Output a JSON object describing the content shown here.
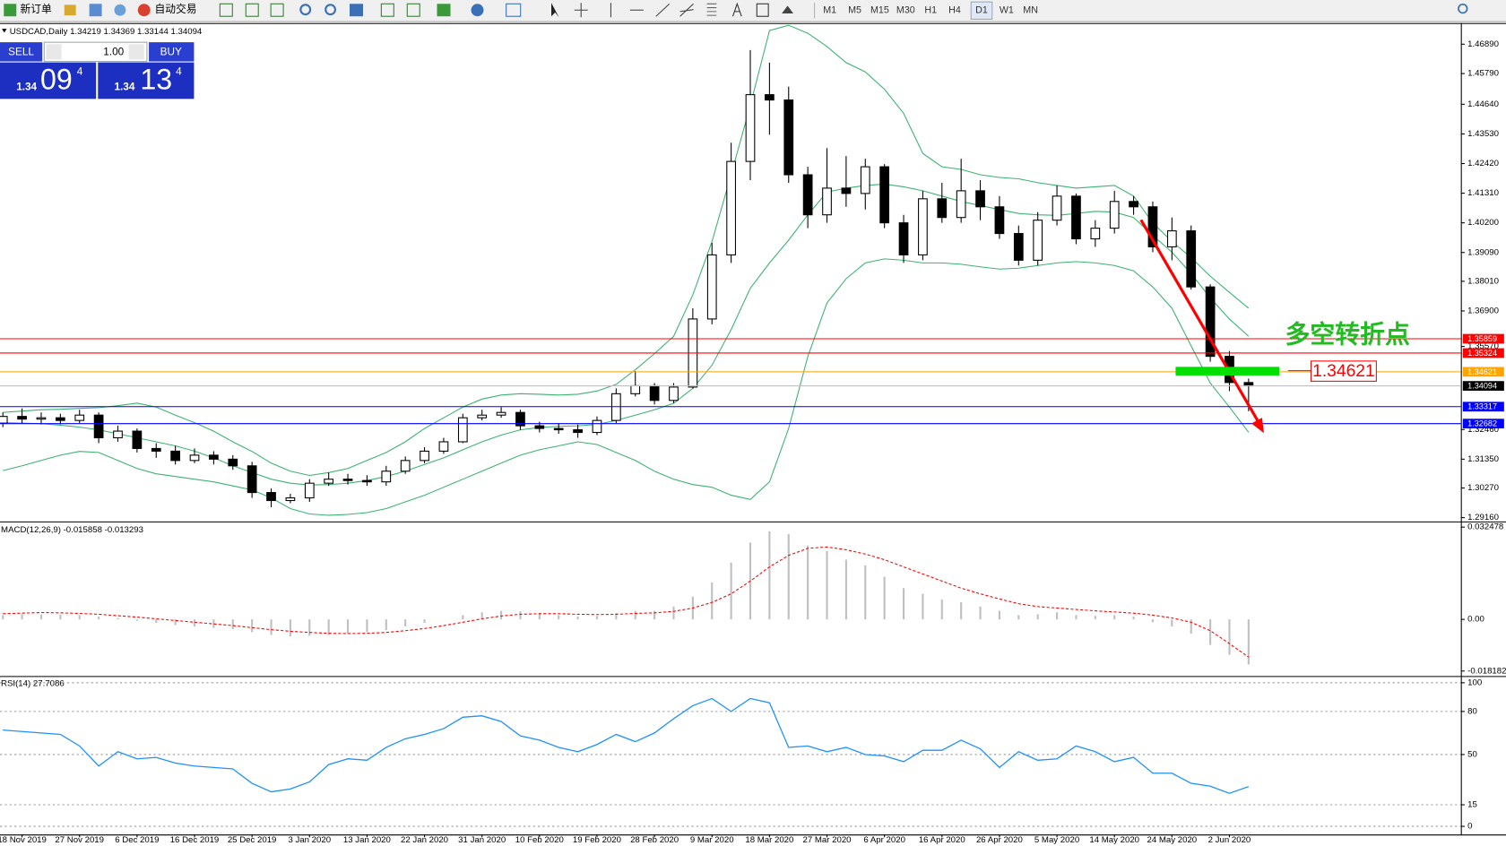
{
  "toolbar": {
    "buttons": [
      "新订单",
      "自动交易"
    ],
    "periods": [
      "M1",
      "M5",
      "M15",
      "M30",
      "H1",
      "H4",
      "D1",
      "W1",
      "MN"
    ]
  },
  "trade_panel": {
    "sell": "SELL",
    "buy": "BUY",
    "lots": "1.00",
    "sell_price": {
      "big": "1.34",
      "pips": "09",
      "point": "4"
    },
    "buy_price": {
      "big": "1.34",
      "pips": "13",
      "point": "4"
    }
  },
  "chart_data": [
    {
      "type": "candlestick",
      "title": "USDCAD,Daily  1.34219 1.34369 1.33144 1.34094",
      "categories": [
        null,
        "18 Nov 2019",
        null,
        null,
        "27 Nov 2019",
        null,
        null,
        "6 Dec 2019",
        null,
        null,
        "16 Dec 2019",
        null,
        null,
        "25 Dec 2019",
        null,
        null,
        "3 Jan 2020",
        null,
        null,
        "13 Jan 2020",
        null,
        null,
        "22 Jan 2020",
        null,
        null,
        "31 Jan 2020",
        null,
        null,
        "10 Feb 2020",
        null,
        null,
        "19 Feb 2020",
        null,
        null,
        "28 Feb 2020",
        null,
        null,
        "9 Mar 2020",
        null,
        null,
        "18 Mar 2020",
        null,
        null,
        "27 Mar 2020",
        null,
        null,
        "6 Apr 2020",
        null,
        null,
        "16 Apr 2020",
        null,
        null,
        "26 Apr 2020",
        null,
        null,
        "5 May 2020",
        null,
        null,
        "14 May 2020",
        null,
        null,
        "24 May 2020",
        null,
        null,
        "2 Jun 2020",
        null
      ],
      "open": [
        1.327,
        1.3295,
        1.3285,
        1.329,
        1.328,
        1.33,
        1.3215,
        1.324,
        1.3175,
        1.3165,
        1.313,
        1.315,
        1.3135,
        1.311,
        1.301,
        1.298,
        1.299,
        1.3045,
        1.306,
        1.3055,
        1.305,
        1.309,
        1.313,
        1.3165,
        1.32,
        1.329,
        1.33,
        1.331,
        1.326,
        1.325,
        1.3245,
        1.3235,
        1.328,
        1.338,
        1.341,
        1.3355,
        1.3405,
        1.366,
        1.39,
        1.425,
        1.45,
        1.448,
        1.42,
        1.405,
        1.415,
        1.413,
        1.423,
        1.402,
        1.39,
        1.411,
        1.404,
        1.414,
        1.408,
        1.398,
        1.388,
        1.403,
        1.412,
        1.396,
        1.4,
        1.41,
        1.408,
        1.393,
        1.399,
        1.378,
        1.352,
        1.34219
      ],
      "high": [
        1.331,
        1.3325,
        1.331,
        1.3305,
        1.332,
        1.331,
        1.326,
        1.325,
        1.3195,
        1.3185,
        1.3175,
        1.3165,
        1.315,
        1.3125,
        1.3025,
        1.3005,
        1.306,
        1.3085,
        1.308,
        1.3075,
        1.311,
        1.3145,
        1.318,
        1.3215,
        1.3305,
        1.332,
        1.333,
        1.332,
        1.3275,
        1.327,
        1.3265,
        1.3295,
        1.34,
        1.3465,
        1.342,
        1.342,
        1.37,
        1.3945,
        1.432,
        1.4667,
        1.462,
        1.453,
        1.423,
        1.43,
        1.427,
        1.426,
        1.424,
        1.405,
        1.414,
        1.417,
        1.426,
        1.418,
        1.412,
        1.401,
        1.406,
        1.416,
        1.413,
        1.403,
        1.414,
        1.412,
        1.41,
        1.404,
        1.401,
        1.379,
        1.354,
        1.34369
      ],
      "low": [
        1.3255,
        1.327,
        1.3265,
        1.3265,
        1.327,
        1.3195,
        1.32,
        1.316,
        1.314,
        1.3115,
        1.312,
        1.3115,
        1.3095,
        1.299,
        1.2955,
        1.297,
        1.2975,
        1.3035,
        1.304,
        1.3035,
        1.3035,
        1.308,
        1.312,
        1.3155,
        1.3195,
        1.328,
        1.329,
        1.3245,
        1.3235,
        1.323,
        1.3215,
        1.3225,
        1.327,
        1.337,
        1.334,
        1.3345,
        1.34,
        1.364,
        1.387,
        1.418,
        1.435,
        1.417,
        1.4,
        1.402,
        1.408,
        1.407,
        1.4,
        1.387,
        1.388,
        1.402,
        1.402,
        1.403,
        1.396,
        1.386,
        1.386,
        1.401,
        1.394,
        1.393,
        1.398,
        1.405,
        1.391,
        1.388,
        1.377,
        1.35,
        1.339,
        1.33144
      ],
      "close": [
        1.3295,
        1.3285,
        1.329,
        1.328,
        1.33,
        1.3215,
        1.324,
        1.3175,
        1.3165,
        1.313,
        1.315,
        1.3135,
        1.311,
        1.301,
        1.298,
        1.299,
        1.3045,
        1.306,
        1.3055,
        1.305,
        1.309,
        1.313,
        1.3165,
        1.32,
        1.329,
        1.33,
        1.331,
        1.326,
        1.325,
        1.3245,
        1.3235,
        1.328,
        1.338,
        1.341,
        1.3355,
        1.3405,
        1.366,
        1.39,
        1.425,
        1.45,
        1.448,
        1.42,
        1.405,
        1.415,
        1.413,
        1.423,
        1.402,
        1.39,
        1.411,
        1.404,
        1.414,
        1.408,
        1.398,
        1.388,
        1.403,
        1.412,
        1.396,
        1.4,
        1.41,
        1.408,
        1.393,
        1.399,
        1.378,
        1.352,
        1.3422,
        1.34094
      ],
      "series": [
        {
          "color": "#3cb371",
          "values": [
            1.331,
            1.3315,
            1.332,
            1.3322,
            1.3325,
            1.3328,
            1.3335,
            1.3345,
            1.333,
            1.33,
            1.3272,
            1.324,
            1.32,
            1.3164,
            1.312,
            1.309,
            1.3074,
            1.3085,
            1.31,
            1.313,
            1.316,
            1.32,
            1.325,
            1.329,
            1.333,
            1.336,
            1.3375,
            1.338,
            1.3378,
            1.3375,
            1.3378,
            1.339,
            1.3415,
            1.347,
            1.353,
            1.3595,
            1.375,
            1.395,
            1.42,
            1.446,
            1.474,
            1.476,
            1.473,
            1.468,
            1.462,
            1.4585,
            1.452,
            1.443,
            1.428,
            1.423,
            1.422,
            1.42,
            1.419,
            1.4185,
            1.417,
            1.416,
            1.415,
            1.4155,
            1.416,
            1.412,
            1.402,
            1.395,
            1.389,
            1.382,
            1.376,
            1.37
          ]
        },
        {
          "color": "#3cb371",
          "values": [
            1.3272,
            1.327,
            1.3268,
            1.3262,
            1.3255,
            1.3245,
            1.323,
            1.3215,
            1.32,
            1.3185,
            1.3165,
            1.314,
            1.311,
            1.3085,
            1.306,
            1.3045,
            1.3038,
            1.304,
            1.3045,
            1.3055,
            1.307,
            1.309,
            1.3115,
            1.314,
            1.317,
            1.32,
            1.3225,
            1.3245,
            1.3254,
            1.3258,
            1.326,
            1.3265,
            1.328,
            1.33,
            1.332,
            1.3344,
            1.34,
            1.3487,
            1.362,
            1.3775,
            1.387,
            1.3955,
            1.405,
            1.4135,
            1.415,
            1.416,
            1.4165,
            1.4155,
            1.414,
            1.412,
            1.41,
            1.4085,
            1.407,
            1.4055,
            1.405,
            1.4048,
            1.4055,
            1.4063,
            1.406,
            1.404,
            1.3973,
            1.391,
            1.383,
            1.3739,
            1.366,
            1.3595
          ]
        },
        {
          "color": "#3cb371",
          "values": [
            1.3092,
            1.311,
            1.313,
            1.315,
            1.3164,
            1.316,
            1.313,
            1.31,
            1.308,
            1.307,
            1.306,
            1.305,
            1.3035,
            1.302,
            1.299,
            1.295,
            1.293,
            1.2925,
            1.2928,
            1.2935,
            1.295,
            1.2975,
            1.3,
            1.303,
            1.306,
            1.309,
            1.312,
            1.315,
            1.317,
            1.3185,
            1.32,
            1.319,
            1.316,
            1.313,
            1.309,
            1.306,
            1.304,
            1.303,
            1.3,
            1.2984,
            1.305,
            1.325,
            1.352,
            1.372,
            1.3811,
            1.387,
            1.3885,
            1.388,
            1.387,
            1.387,
            1.3865,
            1.3855,
            1.3847,
            1.385,
            1.386,
            1.387,
            1.3875,
            1.387,
            1.386,
            1.384,
            1.378,
            1.37,
            1.356,
            1.342,
            1.333,
            1.3236
          ]
        }
      ],
      "levels": [
        {
          "value": 1.35859,
          "color": "#ff0000"
        },
        {
          "value": 1.35324,
          "color": "#ff0000"
        },
        {
          "value": 1.34621,
          "color": "#ffa500"
        },
        {
          "value": 1.33317,
          "color": "#0000ff"
        },
        {
          "value": 1.32682,
          "color": "#0000ff"
        }
      ],
      "bid_line": {
        "value": 1.34094,
        "color": "#c0c0c0"
      },
      "annotations": [
        {
          "text": "多空转折点"
        },
        {
          "text": "1.34621"
        }
      ],
      "ylim": [
        1.2909,
        1.4761
      ],
      "yticks": [
        {
          "value": 1.4689,
          "label": "1.46890"
        },
        {
          "value": 1.4579,
          "label": "1.45790"
        },
        {
          "value": 1.4464,
          "label": "1.44640"
        },
        {
          "value": 1.4353,
          "label": "1.43530"
        },
        {
          "value": 1.4242,
          "label": "1.42420"
        },
        {
          "value": 1.4131,
          "label": "1.41310"
        },
        {
          "value": 1.402,
          "label": "1.40200"
        },
        {
          "value": 1.3909,
          "label": "1.39090"
        },
        {
          "value": 1.3801,
          "label": "1.38010"
        },
        {
          "value": 1.369,
          "label": "1.36900"
        },
        {
          "value": 1.3557,
          "label": "1.35570"
        },
        {
          "value": 1.3246,
          "label": "1.32460"
        },
        {
          "value": 1.3135,
          "label": "1.31350"
        },
        {
          "value": 1.3027,
          "label": "1.30270"
        },
        {
          "value": 1.2916,
          "label": "1.29160"
        }
      ]
    },
    {
      "type": "macd",
      "title": "MACD(12,26,9) -0.015858 -0.013293",
      "series": [
        {
          "style": "histogram",
          "color": "#c0c0c0",
          "values": [
            0.0015,
            0.0018,
            0.0017,
            0.0016,
            0.0015,
            0.001,
            0.0005,
            -0.0005,
            -0.0012,
            -0.002,
            -0.0025,
            -0.003,
            -0.0035,
            -0.0045,
            -0.0055,
            -0.006,
            -0.0058,
            -0.0055,
            -0.005,
            -0.0045,
            -0.0038,
            -0.0025,
            -0.0012,
            0.0,
            0.0015,
            0.0025,
            0.003,
            0.0028,
            0.0022,
            0.0015,
            0.001,
            0.0012,
            0.0022,
            0.003,
            0.003,
            0.0045,
            0.008,
            0.013,
            0.02,
            0.027,
            0.031,
            0.03,
            0.026,
            0.024,
            0.021,
            0.019,
            0.015,
            0.011,
            0.009,
            0.007,
            0.006,
            0.0045,
            0.003,
            0.0015,
            0.0018,
            0.0025,
            0.0015,
            0.0012,
            0.0015,
            0.001,
            -0.001,
            -0.0025,
            -0.005,
            -0.009,
            -0.0125,
            -0.015858
          ]
        },
        {
          "style": "dashed",
          "color": "#ff0000",
          "values": [
            0.002,
            0.0022,
            0.0024,
            0.0023,
            0.0021,
            0.0018,
            0.0013,
            0.0008,
            0.0002,
            -0.0004,
            -0.001,
            -0.0016,
            -0.0022,
            -0.0029,
            -0.0036,
            -0.0042,
            -0.0046,
            -0.0049,
            -0.005,
            -0.0049,
            -0.0046,
            -0.004,
            -0.0032,
            -0.0022,
            -0.001,
            0.0002,
            0.0012,
            0.0018,
            0.002,
            0.002,
            0.0018,
            0.0017,
            0.0018,
            0.0021,
            0.0023,
            0.0028,
            0.004,
            0.006,
            0.009,
            0.0135,
            0.0185,
            0.0225,
            0.025,
            0.0255,
            0.0245,
            0.023,
            0.021,
            0.0185,
            0.016,
            0.0135,
            0.011,
            0.009,
            0.0072,
            0.0055,
            0.0045,
            0.004,
            0.0035,
            0.003,
            0.0026,
            0.0022,
            0.0015,
            0.0005,
            -0.001,
            -0.004,
            -0.0085,
            -0.013293
          ]
        }
      ],
      "ylim": [
        -0.0196,
        0.0338
      ],
      "yticks": [
        0.032478,
        {
          "value": 0,
          "label": "0.00"
        },
        -0.018182
      ]
    },
    {
      "type": "line",
      "title": "RSI(14) 27.7086",
      "color": "#1e90ff",
      "values": [
        67,
        66,
        65,
        64,
        56,
        42,
        52,
        47,
        48,
        44,
        42,
        41,
        40,
        30,
        24,
        26,
        31,
        43,
        47,
        46,
        55,
        61,
        64,
        68,
        76,
        77,
        73,
        63,
        60,
        55,
        52,
        57,
        64,
        59,
        65,
        75,
        84,
        89,
        80,
        89,
        86,
        55,
        56,
        52,
        55,
        50,
        49,
        45,
        53,
        53,
        60,
        54,
        41,
        52,
        46,
        47,
        56,
        52,
        45,
        48,
        37,
        37,
        30,
        28,
        23,
        27.7086
      ],
      "ylim": [
        -5,
        104
      ],
      "yticks": [
        100,
        80,
        50,
        15,
        0
      ],
      "grid": true
    }
  ]
}
